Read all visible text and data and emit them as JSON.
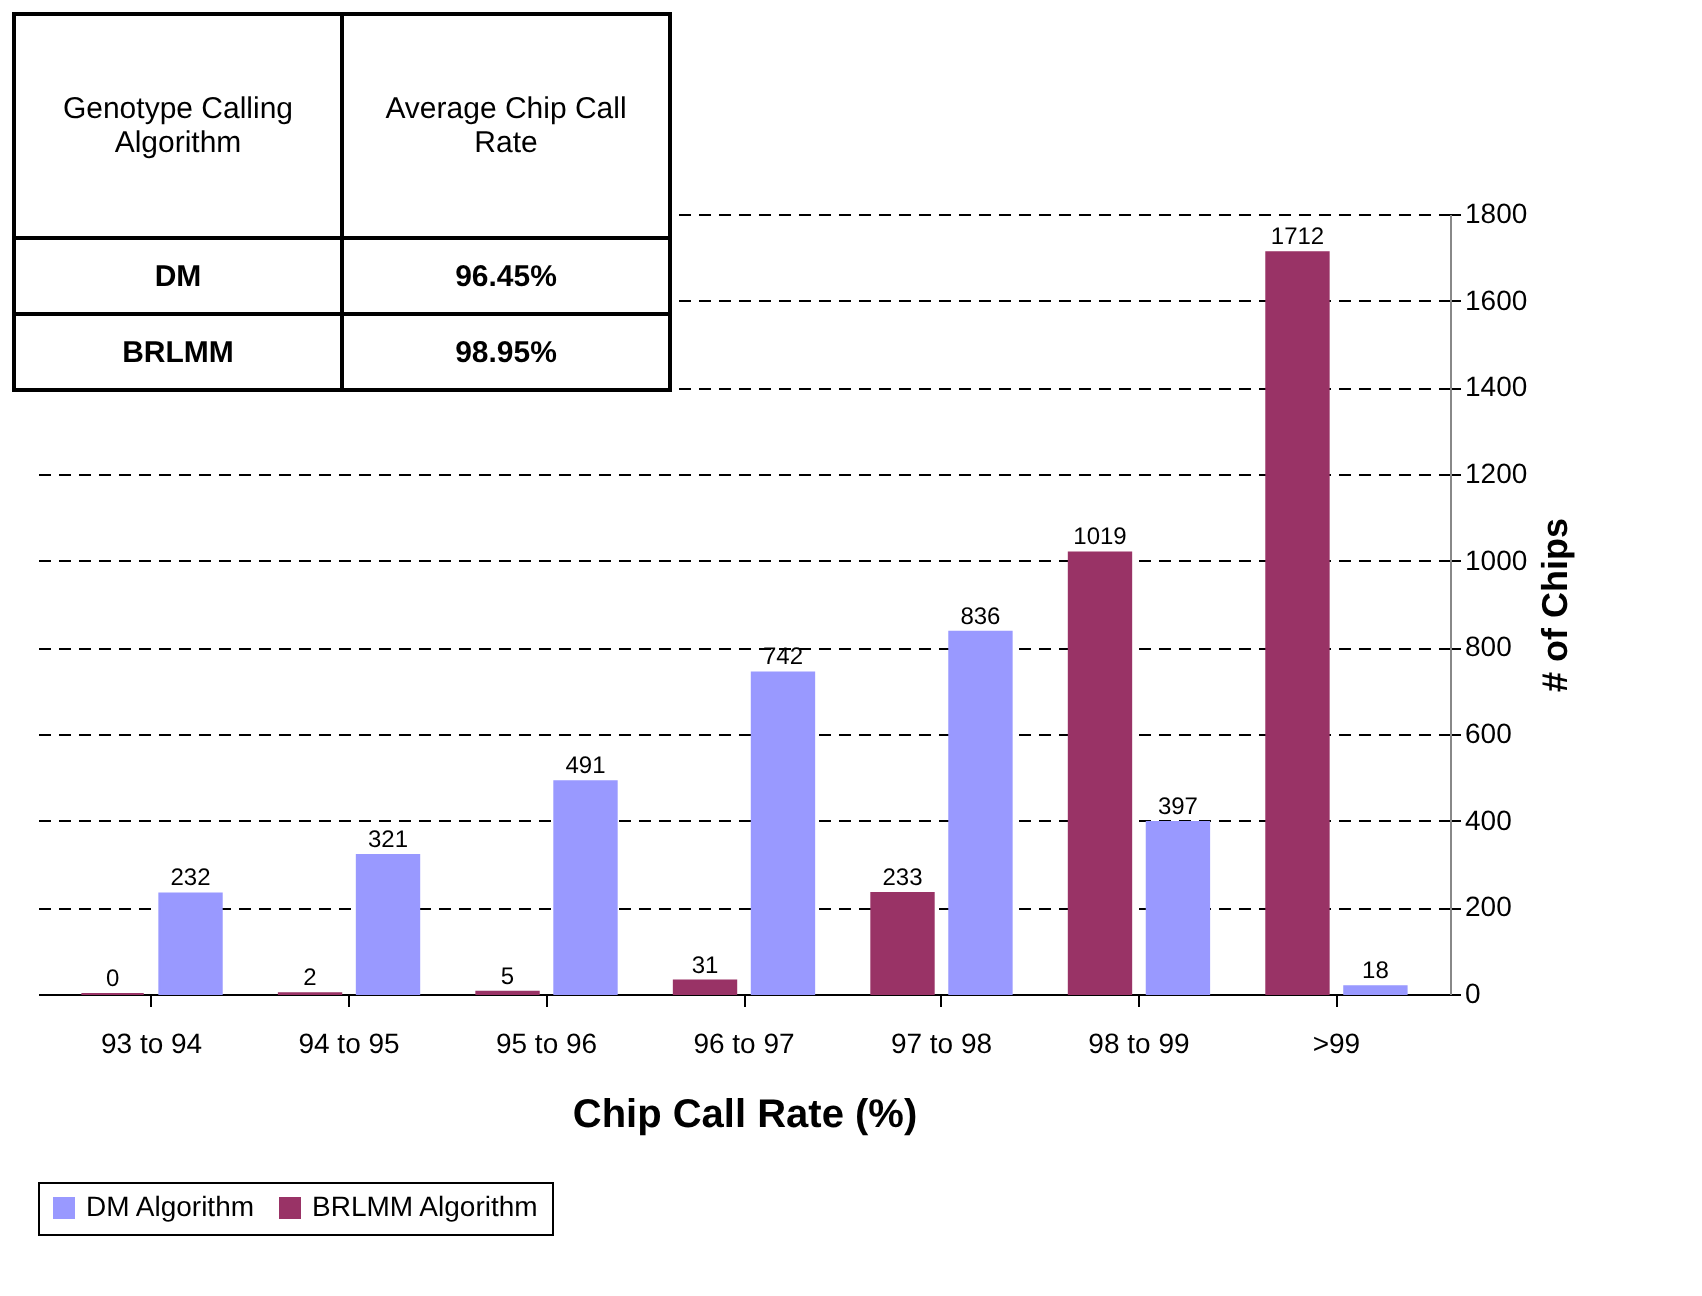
{
  "chart_data": {
    "type": "bar",
    "xlabel": "Chip Call Rate (%)",
    "ylabel": "# of Chips",
    "categories": [
      "93 to 94",
      "94 to 95",
      "95 to 96",
      "96 to 97",
      "97 to 98",
      "98 to 99",
      ">99"
    ],
    "series": [
      {
        "name": "BRLMM Algorithm",
        "color": "#993366",
        "values": [
          0,
          2,
          5,
          31,
          233,
          1019,
          1712
        ]
      },
      {
        "name": "DM Algorithm",
        "color": "#9999ff",
        "values": [
          232,
          321,
          491,
          742,
          836,
          397,
          18
        ]
      }
    ],
    "ylim": [
      0,
      1800
    ],
    "yticks": [
      0,
      200,
      400,
      600,
      800,
      1000,
      1200,
      1400,
      1600,
      1800
    ],
    "grid": "y",
    "legend": "bottom",
    "data_labels": true,
    "annotations": [
      "Genotype Calling Algorithm",
      "Average Chip Call Rate",
      "DM",
      "96.45%",
      "BRLMM",
      "98.95%"
    ]
  }
}
